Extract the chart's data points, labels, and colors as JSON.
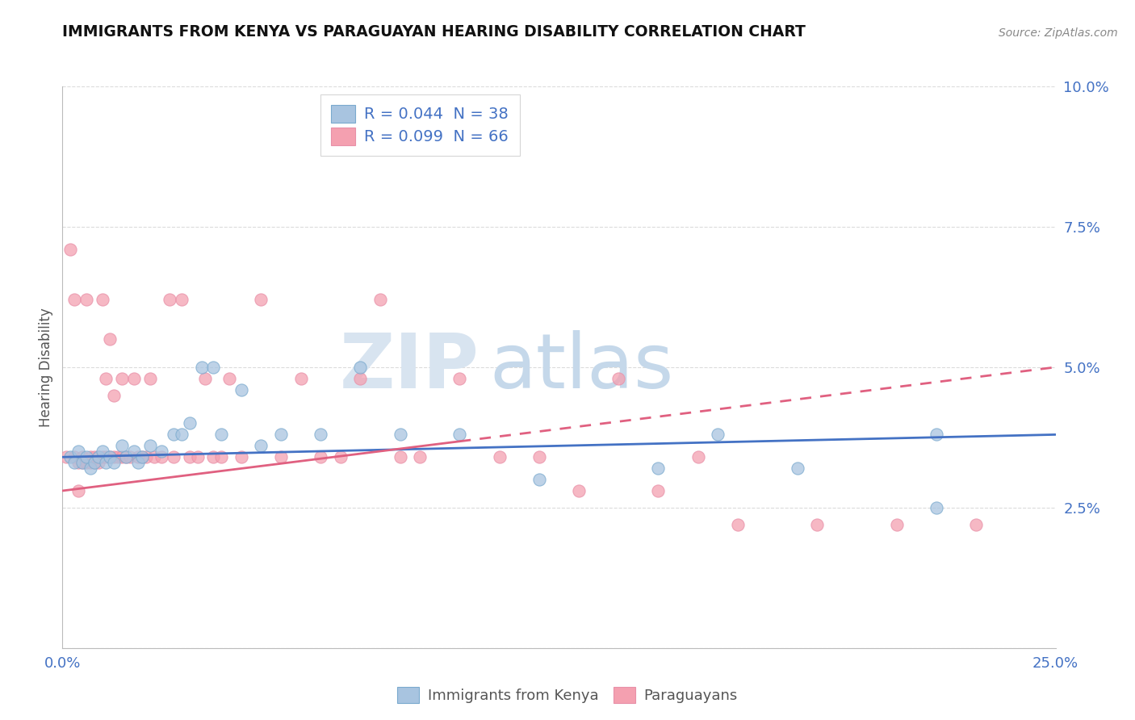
{
  "title": "IMMIGRANTS FROM KENYA VS PARAGUAYAN HEARING DISABILITY CORRELATION CHART",
  "source": "Source: ZipAtlas.com",
  "ylabel": "Hearing Disability",
  "xlim": [
    0.0,
    0.25
  ],
  "ylim": [
    0.0,
    0.1
  ],
  "background_color": "#ffffff",
  "grid_color": "#cccccc",
  "trendline_blue_color": "#4472c4",
  "trendline_pink_color": "#e06080",
  "scatter_blue_color": "#a8c4e0",
  "scatter_pink_color": "#f4a0b0",
  "scatter_blue_edge": "#7aaace",
  "scatter_pink_edge": "#e890a8",
  "blue_R": 0.044,
  "blue_N": 38,
  "pink_R": 0.099,
  "pink_N": 66,
  "blue_trendline_start_y": 0.034,
  "blue_trendline_end_y": 0.038,
  "pink_trendline_start_y": 0.028,
  "pink_trendline_end_y": 0.05,
  "blue_points_x": [
    0.002,
    0.003,
    0.004,
    0.005,
    0.006,
    0.007,
    0.008,
    0.009,
    0.01,
    0.011,
    0.012,
    0.013,
    0.015,
    0.016,
    0.018,
    0.019,
    0.02,
    0.022,
    0.025,
    0.028,
    0.03,
    0.032,
    0.035,
    0.038,
    0.04,
    0.045,
    0.05,
    0.055,
    0.065,
    0.075,
    0.085,
    0.1,
    0.12,
    0.15,
    0.165,
    0.185,
    0.22,
    0.22
  ],
  "blue_points_y": [
    0.034,
    0.033,
    0.035,
    0.033,
    0.034,
    0.032,
    0.033,
    0.034,
    0.035,
    0.033,
    0.034,
    0.033,
    0.036,
    0.034,
    0.035,
    0.033,
    0.034,
    0.036,
    0.035,
    0.038,
    0.038,
    0.04,
    0.05,
    0.05,
    0.038,
    0.046,
    0.036,
    0.038,
    0.038,
    0.05,
    0.038,
    0.038,
    0.03,
    0.032,
    0.038,
    0.032,
    0.038,
    0.025
  ],
  "pink_points_x": [
    0.001,
    0.002,
    0.003,
    0.003,
    0.004,
    0.004,
    0.005,
    0.005,
    0.006,
    0.006,
    0.007,
    0.007,
    0.008,
    0.008,
    0.009,
    0.009,
    0.01,
    0.01,
    0.011,
    0.011,
    0.012,
    0.012,
    0.013,
    0.013,
    0.014,
    0.015,
    0.015,
    0.016,
    0.017,
    0.018,
    0.019,
    0.02,
    0.021,
    0.022,
    0.023,
    0.025,
    0.027,
    0.028,
    0.03,
    0.032,
    0.034,
    0.036,
    0.038,
    0.04,
    0.042,
    0.045,
    0.05,
    0.055,
    0.06,
    0.065,
    0.07,
    0.075,
    0.08,
    0.085,
    0.09,
    0.1,
    0.11,
    0.12,
    0.13,
    0.14,
    0.15,
    0.16,
    0.17,
    0.19,
    0.21,
    0.23
  ],
  "pink_points_y": [
    0.034,
    0.071,
    0.034,
    0.062,
    0.028,
    0.033,
    0.033,
    0.034,
    0.033,
    0.062,
    0.034,
    0.033,
    0.034,
    0.033,
    0.034,
    0.033,
    0.034,
    0.062,
    0.034,
    0.048,
    0.034,
    0.055,
    0.034,
    0.045,
    0.034,
    0.034,
    0.048,
    0.034,
    0.034,
    0.048,
    0.034,
    0.034,
    0.034,
    0.048,
    0.034,
    0.034,
    0.062,
    0.034,
    0.062,
    0.034,
    0.034,
    0.048,
    0.034,
    0.034,
    0.048,
    0.034,
    0.062,
    0.034,
    0.048,
    0.034,
    0.034,
    0.048,
    0.062,
    0.034,
    0.034,
    0.048,
    0.034,
    0.034,
    0.028,
    0.048,
    0.028,
    0.034,
    0.022,
    0.022,
    0.022,
    0.022
  ]
}
